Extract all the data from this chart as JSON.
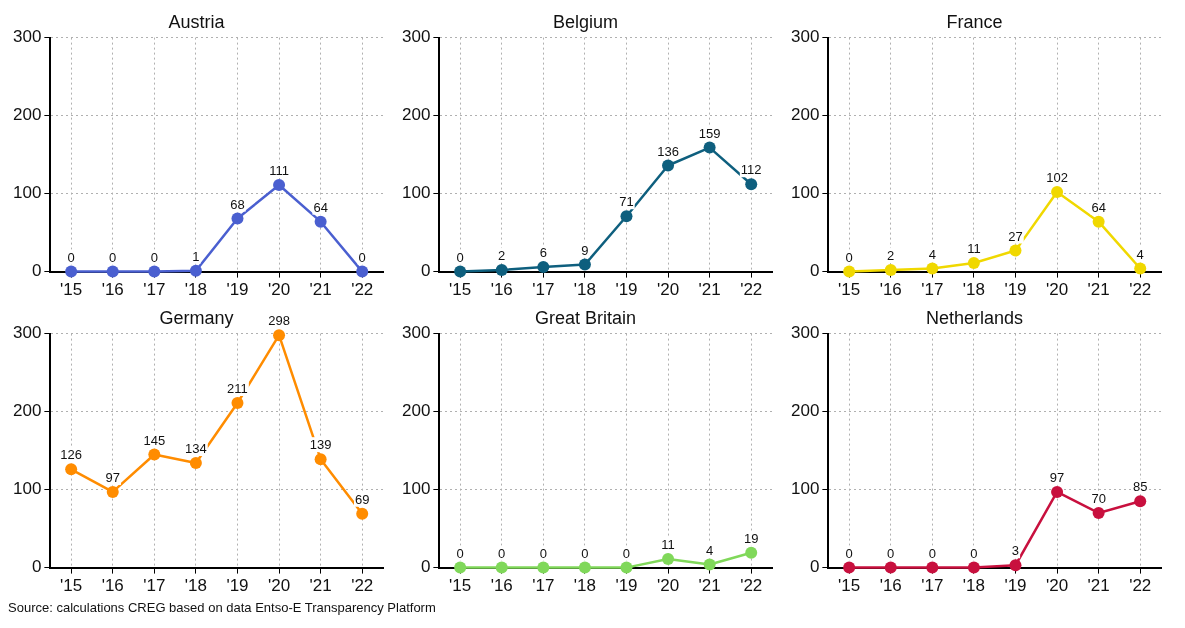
{
  "chart_data": [
    {
      "type": "line",
      "title": "Austria",
      "categories": [
        "'15",
        "'16",
        "'17",
        "'18",
        "'19",
        "'20",
        "'21",
        "'22"
      ],
      "series": [
        {
          "color": "#4a5fd0",
          "values": [
            0,
            0,
            0,
            1,
            68,
            111,
            64,
            0
          ]
        }
      ],
      "ylim": [
        0,
        300
      ],
      "yticks": [
        0,
        100,
        200,
        300
      ],
      "grid": true,
      "marker": "circle",
      "line_style": "solid",
      "data_labels": true,
      "legend": false
    },
    {
      "type": "line",
      "title": "Belgium",
      "categories": [
        "'15",
        "'16",
        "'17",
        "'18",
        "'19",
        "'20",
        "'21",
        "'22"
      ],
      "series": [
        {
          "color": "#0e5f7e",
          "values": [
            0,
            2,
            6,
            9,
            71,
            136,
            159,
            112
          ]
        }
      ],
      "ylim": [
        0,
        300
      ],
      "yticks": [
        0,
        100,
        200,
        300
      ],
      "grid": true,
      "marker": "circle",
      "line_style": "solid",
      "data_labels": true,
      "legend": false
    },
    {
      "type": "line",
      "title": "France",
      "categories": [
        "'15",
        "'16",
        "'17",
        "'18",
        "'19",
        "'20",
        "'21",
        "'22"
      ],
      "series": [
        {
          "color": "#f0d800",
          "values": [
            0,
            2,
            4,
            11,
            27,
            102,
            64,
            4
          ]
        }
      ],
      "ylim": [
        0,
        300
      ],
      "yticks": [
        0,
        100,
        200,
        300
      ],
      "grid": true,
      "marker": "circle",
      "line_style": "solid",
      "data_labels": true,
      "legend": false
    },
    {
      "type": "line",
      "title": "Germany",
      "categories": [
        "'15",
        "'16",
        "'17",
        "'18",
        "'19",
        "'20",
        "'21",
        "'22"
      ],
      "series": [
        {
          "color": "#ff8c00",
          "values": [
            126,
            97,
            145,
            134,
            211,
            298,
            139,
            69
          ]
        }
      ],
      "ylim": [
        0,
        300
      ],
      "yticks": [
        0,
        100,
        200,
        300
      ],
      "grid": true,
      "marker": "circle",
      "line_style": "solid",
      "data_labels": true,
      "legend": false
    },
    {
      "type": "line",
      "title": "Great Britain",
      "categories": [
        "'15",
        "'16",
        "'17",
        "'18",
        "'19",
        "'20",
        "'21",
        "'22"
      ],
      "series": [
        {
          "color": "#80d85a",
          "values": [
            0,
            0,
            0,
            0,
            0,
            11,
            4,
            19
          ]
        }
      ],
      "ylim": [
        0,
        300
      ],
      "yticks": [
        0,
        100,
        200,
        300
      ],
      "grid": true,
      "marker": "circle",
      "line_style": "solid",
      "data_labels": true,
      "legend": false
    },
    {
      "type": "line",
      "title": "Netherlands",
      "categories": [
        "'15",
        "'16",
        "'17",
        "'18",
        "'19",
        "'20",
        "'21",
        "'22"
      ],
      "series": [
        {
          "color": "#c8103e",
          "values": [
            0,
            0,
            0,
            0,
            3,
            97,
            70,
            85
          ]
        }
      ],
      "ylim": [
        0,
        300
      ],
      "yticks": [
        0,
        100,
        200,
        300
      ],
      "grid": true,
      "marker": "circle",
      "line_style": "solid",
      "data_labels": true,
      "legend": false,
      "annotations": [
        "Source: calculations CREG based on data Entso-E Transparency Platform"
      ]
    }
  ]
}
